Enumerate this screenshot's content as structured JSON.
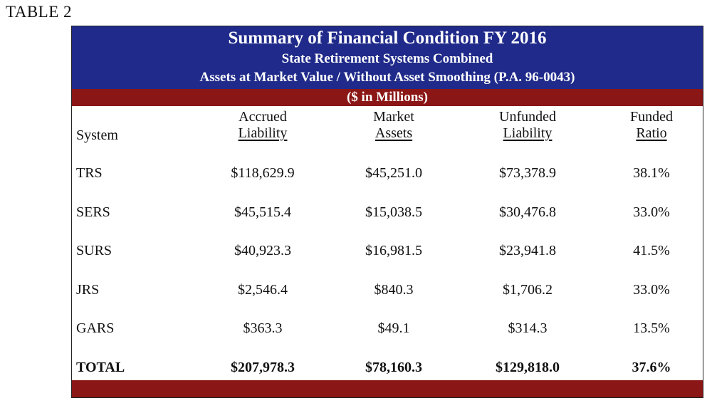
{
  "table_label": "TABLE 2",
  "title": "Summary of Financial Condition FY 2016",
  "subtitle1": "State Retirement Systems Combined",
  "subtitle2": "Assets at Market Value / Without Asset Smoothing (P.A. 96-0043)",
  "units": "($ in Millions)",
  "headers": {
    "system": "System",
    "accrued_l1": "Accrued",
    "accrued_l2": "Liability",
    "market_l1": "Market",
    "market_l2": "Assets",
    "unfunded_l1": "Unfunded",
    "unfunded_l2": "Liability",
    "funded_l1": "Funded",
    "funded_l2": "Ratio"
  },
  "rows": [
    {
      "system": "TRS",
      "accrued": "$118,629.9",
      "market": "$45,251.0",
      "unfunded": "$73,378.9",
      "funded": "38.1%"
    },
    {
      "system": "SERS",
      "accrued": "$45,515.4",
      "market": "$15,038.5",
      "unfunded": "$30,476.8",
      "funded": "33.0%"
    },
    {
      "system": "SURS",
      "accrued": "$40,923.3",
      "market": "$16,981.5",
      "unfunded": "$23,941.8",
      "funded": "41.5%"
    },
    {
      "system": "JRS",
      "accrued": "$2,546.4",
      "market": "$840.3",
      "unfunded": "$1,706.2",
      "funded": "33.0%"
    },
    {
      "system": "GARS",
      "accrued": "$363.3",
      "market": "$49.1",
      "unfunded": "$314.3",
      "funded": "13.5%"
    }
  ],
  "total": {
    "system": "TOTAL",
    "accrued": "$207,978.3",
    "market": "$78,160.3",
    "unfunded": "$129,818.0",
    "funded": "37.6%"
  },
  "colors": {
    "banner": "#1f2a8a",
    "bar": "#8b1616"
  }
}
